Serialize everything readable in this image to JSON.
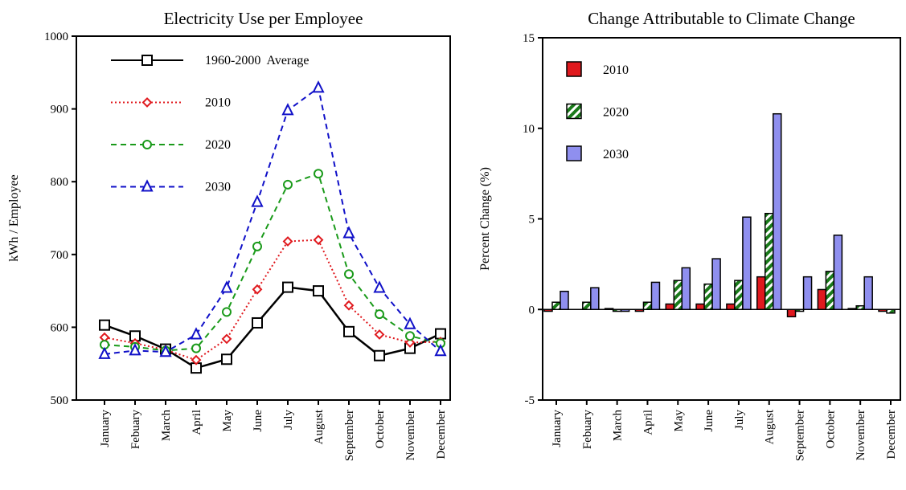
{
  "chart_data": [
    {
      "type": "line",
      "title": "Electricity Use per Employee",
      "y_label": "kWh / Employee",
      "categories": [
        "January",
        "Febuary",
        "March",
        "April",
        "May",
        "June",
        "July",
        "August",
        "September",
        "October",
        "November",
        "December"
      ],
      "ylim": [
        500,
        1000
      ],
      "yticks": [
        500,
        600,
        700,
        800,
        900,
        1000
      ],
      "legend": "upper left",
      "series": [
        {
          "name": "1960-2000  Average",
          "color": "#000000",
          "line_style": "solid",
          "marker": "square",
          "values": [
            603,
            588,
            570,
            544,
            556,
            606,
            655,
            650,
            594,
            561,
            571,
            591
          ]
        },
        {
          "name": "2010",
          "color": "#e0191e",
          "line_style": "dotted",
          "marker": "diamond",
          "values": [
            586,
            578,
            569,
            555,
            584,
            652,
            718,
            720,
            630,
            590,
            579,
            580
          ]
        },
        {
          "name": "2020",
          "color": "#1a9a1a",
          "line_style": "dashed",
          "marker": "circle",
          "values": [
            576,
            573,
            568,
            571,
            621,
            711,
            796,
            811,
            673,
            618,
            588,
            578
          ]
        },
        {
          "name": "2030",
          "color": "#1010c8",
          "line_style": "dashed",
          "marker": "triangle",
          "values": [
            563,
            568,
            566,
            590,
            654,
            772,
            898,
            929,
            729,
            654,
            604,
            567
          ]
        }
      ]
    },
    {
      "type": "bar",
      "title": "Change Attributable to Climate Change",
      "y_label": "Percent Change (%)",
      "categories": [
        "January",
        "Febuary",
        "March",
        "April",
        "May",
        "June",
        "July",
        "August",
        "September",
        "October",
        "November",
        "December"
      ],
      "ylim": [
        -5,
        15
      ],
      "yticks": [
        -5,
        0,
        5,
        10,
        15
      ],
      "legend": "upper left",
      "series": [
        {
          "name": "2010",
          "color": "#e0191e",
          "hatch": false,
          "values": [
            -0.1,
            0.0,
            0.05,
            -0.1,
            0.3,
            0.3,
            0.3,
            1.8,
            -0.4,
            1.1,
            0.05,
            -0.1
          ]
        },
        {
          "name": "2020",
          "color": "#1a7a1a",
          "hatch": true,
          "values": [
            0.4,
            0.4,
            -0.1,
            0.4,
            1.6,
            1.4,
            1.6,
            5.3,
            -0.1,
            2.1,
            0.2,
            -0.2
          ]
        },
        {
          "name": "2030",
          "color": "#8f8fef",
          "hatch": false,
          "values": [
            1.0,
            1.2,
            -0.1,
            1.5,
            2.3,
            2.8,
            5.1,
            10.8,
            1.8,
            4.1,
            1.8,
            0
          ]
        }
      ]
    }
  ]
}
